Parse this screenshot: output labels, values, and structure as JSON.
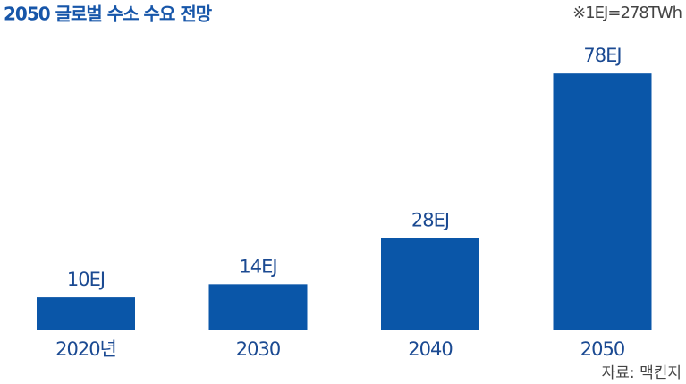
{
  "chart_data": {
    "type": "bar",
    "title": "2050 글로벌 수소 수요 전망",
    "note": "※1EJ=278TWh",
    "source": "자료: 맥킨지",
    "categories": [
      "2020년",
      "2030",
      "2040",
      "2050"
    ],
    "values": [
      10,
      14,
      28,
      78
    ],
    "value_labels": [
      "10EJ",
      "14EJ",
      "28EJ",
      "78EJ"
    ],
    "color": "#0a56a8"
  }
}
